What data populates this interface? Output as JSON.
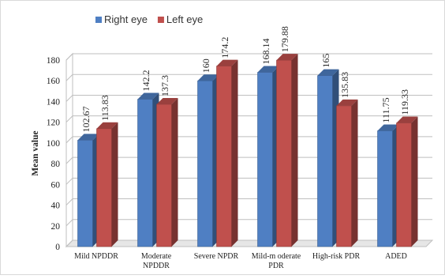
{
  "chart_data": {
    "type": "bar",
    "title": "",
    "xlabel": "",
    "ylabel": "Mean value",
    "ylim": [
      0,
      180
    ],
    "yticks": [
      0,
      20,
      40,
      60,
      80,
      100,
      120,
      140,
      160,
      180
    ],
    "categories": [
      [
        "Mild NPDDR"
      ],
      [
        "Moderate",
        "NPDDR"
      ],
      [
        "Severe NPDR"
      ],
      [
        "Mild-m oderate",
        "PDR"
      ],
      [
        "High-risk PDR"
      ],
      [
        "ADED"
      ]
    ],
    "series": [
      {
        "name": "Right eye",
        "color": "#4f7fc3",
        "values": [
          102.67,
          142.2,
          160,
          168.14,
          165,
          111.75
        ],
        "labels": [
          "102.67",
          "142.2",
          "160",
          "168.14",
          "165",
          "111.75"
        ]
      },
      {
        "name": "Left eye",
        "color": "#c0504d",
        "values": [
          113.83,
          137.3,
          174.2,
          179.88,
          135.83,
          119.33
        ],
        "labels": [
          "113.83",
          "137.3",
          "174.2",
          "179.88",
          "135.83",
          "119.33"
        ]
      }
    ],
    "legend_position": "top",
    "grid": true,
    "style": "3d-column"
  }
}
